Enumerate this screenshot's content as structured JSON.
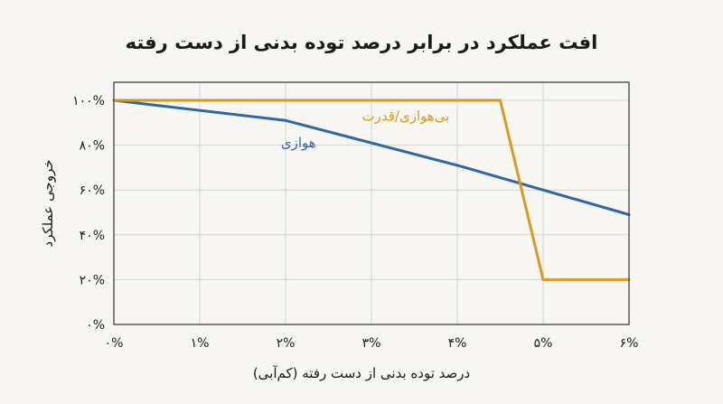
{
  "chart_data": {
    "type": "line",
    "title": "افت عملکرد در برابر درصد توده بدنی از دست رفته",
    "xlabel": "درصد توده بدنی از دست رفته (کم‌آبی)",
    "ylabel": "خروجی عملکرد",
    "xlim": [
      0,
      6
    ],
    "ylim": [
      0,
      100
    ],
    "grid": true,
    "x_ticks": [
      {
        "value": 0,
        "label": "۰%"
      },
      {
        "value": 1,
        "label": "۱%"
      },
      {
        "value": 2,
        "label": "۲%"
      },
      {
        "value": 3,
        "label": "۳%"
      },
      {
        "value": 4,
        "label": "۴%"
      },
      {
        "value": 5,
        "label": "۵%"
      },
      {
        "value": 6,
        "label": "۶%"
      }
    ],
    "y_ticks": [
      {
        "value": 0,
        "label": "۰%"
      },
      {
        "value": 20,
        "label": "۲۰%"
      },
      {
        "value": 40,
        "label": "۴۰%"
      },
      {
        "value": 60,
        "label": "۶۰%"
      },
      {
        "value": 80,
        "label": "۸۰%"
      },
      {
        "value": 100,
        "label": "۱۰۰%"
      }
    ],
    "series": [
      {
        "name": "هوازی",
        "color": "#2e67a6",
        "points": [
          [
            0,
            100
          ],
          [
            2,
            91
          ],
          [
            4,
            71
          ],
          [
            6,
            49
          ]
        ],
        "label_at": [
          2.15,
          79
        ]
      },
      {
        "name": "بی‌هوازی/قدرت",
        "color": "#d99a22",
        "points": [
          [
            0,
            100
          ],
          [
            4.5,
            100
          ],
          [
            5,
            20
          ],
          [
            6,
            20
          ]
        ],
        "label_at": [
          3.4,
          91
        ]
      }
    ]
  }
}
